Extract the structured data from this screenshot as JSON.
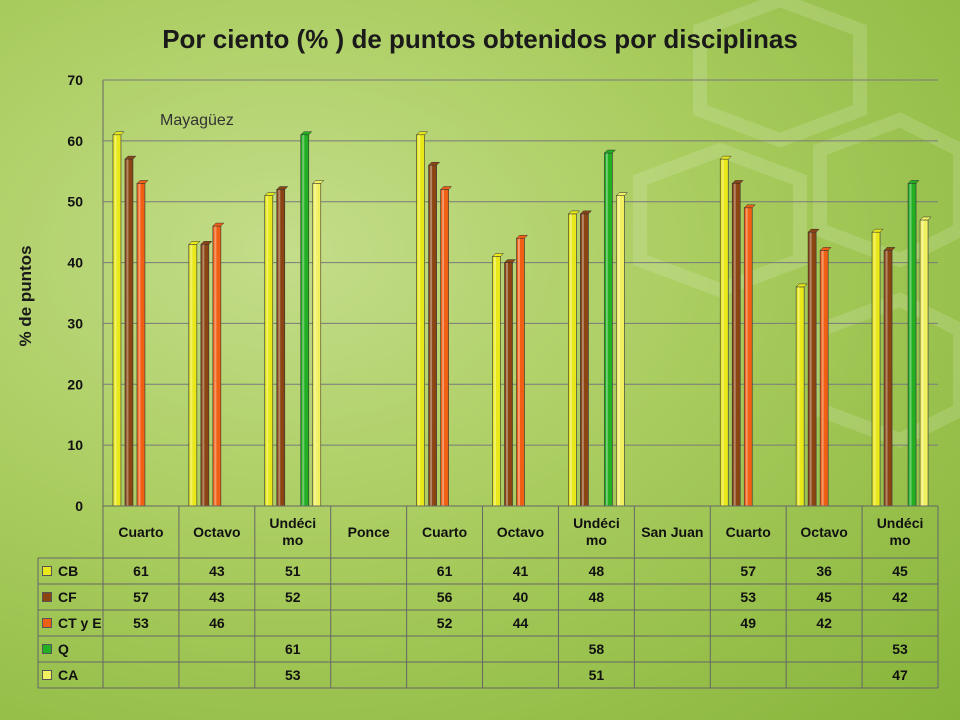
{
  "chart_data": {
    "type": "bar",
    "title": "Por ciento (% ) de puntos obtenidos por disciplinas",
    "ylabel": "% de puntos",
    "xlabel": "",
    "ylim": [
      0,
      70
    ],
    "yticks": [
      0,
      10,
      20,
      30,
      40,
      50,
      60,
      70
    ],
    "grid": true,
    "legend": "data-table",
    "annotation": "Mayagüez",
    "categories": [
      "Cuarto",
      "Octavo",
      "Undéci mo",
      "Ponce",
      "Cuarto",
      "Octavo",
      "Undéci mo",
      "San Juan",
      "Cuarto",
      "Octavo",
      "Undéci mo"
    ],
    "series": [
      {
        "name": "CB",
        "color": "#e8e81a",
        "values": [
          61,
          43,
          51,
          null,
          61,
          41,
          48,
          null,
          57,
          36,
          45
        ]
      },
      {
        "name": "CF",
        "color": "#8b4513",
        "values": [
          57,
          43,
          52,
          null,
          56,
          40,
          48,
          null,
          53,
          45,
          42
        ]
      },
      {
        "name": "CT y E",
        "color": "#f06014",
        "values": [
          53,
          46,
          null,
          null,
          52,
          44,
          null,
          null,
          49,
          42,
          null
        ]
      },
      {
        "name": "Q",
        "color": "#22b022",
        "values": [
          null,
          null,
          61,
          null,
          null,
          null,
          58,
          null,
          null,
          null,
          53
        ]
      },
      {
        "name": "CA",
        "color": "#f0f060",
        "values": [
          null,
          null,
          53,
          null,
          null,
          null,
          51,
          null,
          null,
          null,
          47
        ]
      }
    ]
  }
}
